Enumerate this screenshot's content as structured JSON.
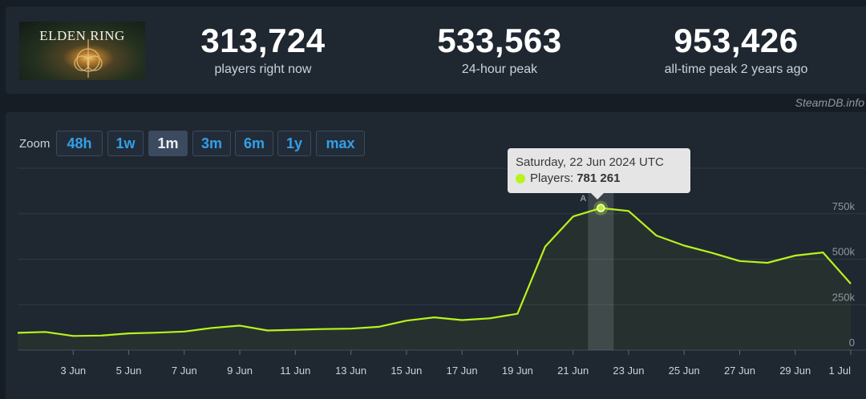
{
  "game": {
    "logo_text": "ELDEN RING"
  },
  "stats": [
    {
      "value": "313,724",
      "label": "players right now"
    },
    {
      "value": "533,563",
      "label": "24-hour peak"
    },
    {
      "value": "953,426",
      "label": "all-time peak 2 years ago"
    }
  ],
  "credit": "SteamDB.info",
  "zoom": {
    "label": "Zoom",
    "options": [
      "48h",
      "1w",
      "1m",
      "3m",
      "6m",
      "1y",
      "max"
    ],
    "active": "1m"
  },
  "colors": {
    "line": "#b9f21c",
    "link": "#33a0e8",
    "panel": "#1f2731",
    "background": "#171d25"
  },
  "tooltip": {
    "date": "Saturday, 22 Jun 2024 UTC",
    "series_label": "Players:",
    "value": "781 261"
  },
  "event_marker": {
    "label": "A",
    "date": "22 Jun"
  },
  "chart_data": {
    "type": "line",
    "x": [
      "1 Jun",
      "2 Jun",
      "3 Jun",
      "4 Jun",
      "5 Jun",
      "6 Jun",
      "7 Jun",
      "8 Jun",
      "9 Jun",
      "10 Jun",
      "11 Jun",
      "12 Jun",
      "13 Jun",
      "14 Jun",
      "15 Jun",
      "16 Jun",
      "17 Jun",
      "18 Jun",
      "19 Jun",
      "20 Jun",
      "21 Jun",
      "22 Jun",
      "23 Jun",
      "24 Jun",
      "25 Jun",
      "26 Jun",
      "27 Jun",
      "28 Jun",
      "29 Jun",
      "30 Jun",
      "1 Jul"
    ],
    "series": [
      {
        "values": [
          95000,
          100000,
          78000,
          80000,
          92000,
          96000,
          102000,
          122000,
          135000,
          108000,
          112000,
          116000,
          118000,
          128000,
          162000,
          180000,
          165000,
          175000,
          200000,
          570000,
          735000,
          781261,
          765000,
          630000,
          575000,
          535000,
          490000,
          480000,
          520000,
          537000,
          365000
        ]
      }
    ],
    "xticks": [
      "3 Jun",
      "5 Jun",
      "7 Jun",
      "9 Jun",
      "11 Jun",
      "13 Jun",
      "15 Jun",
      "17 Jun",
      "19 Jun",
      "21 Jun",
      "23 Jun",
      "25 Jun",
      "27 Jun",
      "29 Jun",
      "1 Jul"
    ],
    "yticks": [
      {
        "value": 0,
        "label": "0"
      },
      {
        "value": 250000,
        "label": "250k"
      },
      {
        "value": 500000,
        "label": "500k"
      },
      {
        "value": 750000,
        "label": "750k"
      }
    ],
    "ylim": [
      0,
      1000000
    ],
    "grid": true,
    "legend": "none",
    "highlight": {
      "x": "22 Jun",
      "value": 781261
    }
  }
}
